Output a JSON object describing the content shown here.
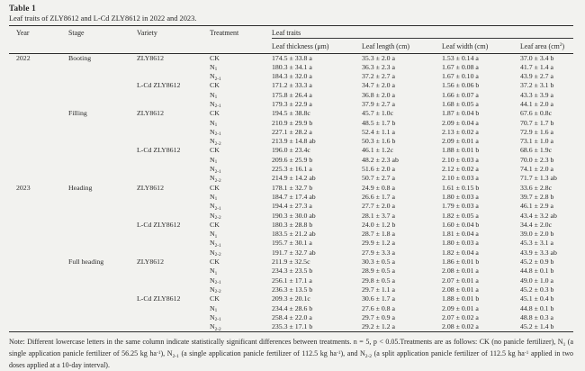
{
  "page": {
    "title": "Table 1",
    "caption": "Leaf traits of ZLY8612 and L-Cd ZLY8612 in 2022 and 2023."
  },
  "table": {
    "columns": [
      "Year",
      "Stage",
      "Variety",
      "Treatment"
    ],
    "group_header": "Leaf traits",
    "subcolumns": [
      "Leaf thickness (μm)",
      "Leaf length (cm)",
      "Leaf width (cm)",
      "Leaf area (cm^{2})"
    ],
    "rows": [
      {
        "year": "2022",
        "stage": "Booting",
        "variety": "ZLY8612",
        "treatment": "CK",
        "thickness": "174.5 ± 33.8 a",
        "length": "35.3 ± 2.0 a",
        "width": "1.53 ± 0.14 a",
        "area": "37.0 ± 3.4 b"
      },
      {
        "year": "",
        "stage": "",
        "variety": "",
        "treatment": "N_{1}",
        "thickness": "180.3 ± 34.1 a",
        "length": "36.3 ± 2.3 a",
        "width": "1.67 ± 0.08 a",
        "area": "41.7 ± 1.4 a"
      },
      {
        "year": "",
        "stage": "",
        "variety": "",
        "treatment": "N_{2-1}",
        "thickness": "184.3 ± 32.0 a",
        "length": "37.2 ± 2.7 a",
        "width": "1.67 ± 0.10 a",
        "area": "43.9 ± 2.7 a"
      },
      {
        "year": "",
        "stage": "",
        "variety": "L-Cd ZLY8612",
        "treatment": "CK",
        "thickness": "171.2 ± 33.3 a",
        "length": "34.7 ± 2.0 a",
        "width": "1.56 ± 0.06 b",
        "area": "37.2 ± 3.1 b"
      },
      {
        "year": "",
        "stage": "",
        "variety": "",
        "treatment": "N_{1}",
        "thickness": "175.8 ± 26.4 a",
        "length": "36.8 ± 2.0 a",
        "width": "1.66 ± 0.07 a",
        "area": "43.3 ± 3.9 a"
      },
      {
        "year": "",
        "stage": "",
        "variety": "",
        "treatment": "N_{2-1}",
        "thickness": "179.3 ± 22.9 a",
        "length": "37.9 ± 2.7 a",
        "width": "1.68 ± 0.05 a",
        "area": "44.1 ± 2.0 a"
      },
      {
        "year": "",
        "stage": "Filling",
        "variety": "ZLY8612",
        "treatment": "CK",
        "thickness": "194.5 ± 38.8c",
        "length": "45.7 ± 1.0c",
        "width": "1.87 ± 0.04 b",
        "area": "67.6 ± 0.8c"
      },
      {
        "year": "",
        "stage": "",
        "variety": "",
        "treatment": "N_{1}",
        "thickness": "210.9 ± 29.9 b",
        "length": "48.5 ± 1.7 b",
        "width": "2.09 ± 0.04 a",
        "area": "70.7 ± 1.7 b"
      },
      {
        "year": "",
        "stage": "",
        "variety": "",
        "treatment": "N_{2-1}",
        "thickness": "227.1 ± 28.2 a",
        "length": "52.4 ± 1.1 a",
        "width": "2.13 ± 0.02 a",
        "area": "72.9 ± 1.6 a"
      },
      {
        "year": "",
        "stage": "",
        "variety": "",
        "treatment": "N_{2-2}",
        "thickness": "213.9 ± 14.8 ab",
        "length": "50.3 ± 1.6 b",
        "width": "2.09 ± 0.01 a",
        "area": "73.1 ± 1.0 a"
      },
      {
        "year": "",
        "stage": "",
        "variety": "L-Cd ZLY8612",
        "treatment": "CK",
        "thickness": "196.0 ± 23.4c",
        "length": "46.1 ± 1.2c",
        "width": "1.88 ± 0.01 b",
        "area": "68.6 ± 1.9c"
      },
      {
        "year": "",
        "stage": "",
        "variety": "",
        "treatment": "N_{1}",
        "thickness": "209.6 ± 25.9 b",
        "length": "48.2 ± 2.3 ab",
        "width": "2.10 ± 0.03 a",
        "area": "70.0 ± 2.3 b"
      },
      {
        "year": "",
        "stage": "",
        "variety": "",
        "treatment": "N_{2-1}",
        "thickness": "225.3 ± 16.1 a",
        "length": "51.6 ± 2.0 a",
        "width": "2.12 ± 0.02 a",
        "area": "74.1 ± 2.0 a"
      },
      {
        "year": "",
        "stage": "",
        "variety": "",
        "treatment": "N_{2-2}",
        "thickness": "214.9 ± 14.2 ab",
        "length": "50.7 ± 2.7 a",
        "width": "2.10 ± 0.03 a",
        "area": "71.7 ± 1.3 ab"
      },
      {
        "year": "2023",
        "stage": "Heading",
        "variety": "ZLY8612",
        "treatment": "CK",
        "thickness": "178.1 ± 32.7 b",
        "length": "24.9 ± 0.8 a",
        "width": "1.61 ± 0.15 b",
        "area": "33.6 ± 2.8c"
      },
      {
        "year": "",
        "stage": "",
        "variety": "",
        "treatment": "N_{1}",
        "thickness": "184.7 ± 17.4 ab",
        "length": "26.6 ± 1.7 a",
        "width": "1.80 ± 0.03 a",
        "area": "39.7 ± 2.8 b"
      },
      {
        "year": "",
        "stage": "",
        "variety": "",
        "treatment": "N_{2-1}",
        "thickness": "194.4 ± 27.3 a",
        "length": "27.7 ± 2.0 a",
        "width": "1.79 ± 0.03 a",
        "area": "46.1 ± 2.9 a"
      },
      {
        "year": "",
        "stage": "",
        "variety": "",
        "treatment": "N_{2-2}",
        "thickness": "190.3 ± 30.0 ab",
        "length": "28.1 ± 3.7 a",
        "width": "1.82 ± 0.05 a",
        "area": "43.4 ± 3.2 ab"
      },
      {
        "year": "",
        "stage": "",
        "variety": "L-Cd ZLY8612",
        "treatment": "CK",
        "thickness": "180.3 ± 28.8 b",
        "length": "24.0 ± 1.2 b",
        "width": "1.60 ± 0.04 b",
        "area": "34.4 ± 2.0c"
      },
      {
        "year": "",
        "stage": "",
        "variety": "",
        "treatment": "N_{1}",
        "thickness": "183.5 ± 21.2 ab",
        "length": "28.7 ± 1.8 a",
        "width": "1.81 ± 0.04 a",
        "area": "39.0 ± 2.0 b"
      },
      {
        "year": "",
        "stage": "",
        "variety": "",
        "treatment": "N_{2-1}",
        "thickness": "195.7 ± 30.1 a",
        "length": "29.9 ± 1.2 a",
        "width": "1.80 ± 0.03 a",
        "area": "45.3 ± 3.1 a"
      },
      {
        "year": "",
        "stage": "",
        "variety": "",
        "treatment": "N_{2-2}",
        "thickness": "191.7 ± 32.7 ab",
        "length": "27.9 ± 3.3 a",
        "width": "1.82 ± 0.04 a",
        "area": "43.9 ± 3.3 ab"
      },
      {
        "year": "",
        "stage": "Full heading",
        "variety": "ZLY8612",
        "treatment": "CK",
        "thickness": "211.9 ± 32.5c",
        "length": "30.3 ± 0.5 a",
        "width": "1.86 ± 0.01 b",
        "area": "45.2 ± 0.9 b"
      },
      {
        "year": "",
        "stage": "",
        "variety": "",
        "treatment": "N_{1}",
        "thickness": "234.3 ± 23.5 b",
        "length": "28.9 ± 0.5 a",
        "width": "2.08 ± 0.01 a",
        "area": "44.8 ± 0.1 b"
      },
      {
        "year": "",
        "stage": "",
        "variety": "",
        "treatment": "N_{2-1}",
        "thickness": "256.1 ± 17.1 a",
        "length": "29.8 ± 0.5 a",
        "width": "2.07 ± 0.01 a",
        "area": "49.0 ± 1.0 a"
      },
      {
        "year": "",
        "stage": "",
        "variety": "",
        "treatment": "N_{2-2}",
        "thickness": "236.3 ± 13.5 b",
        "length": "29.7 ± 1.1 a",
        "width": "2.08 ± 0.01 a",
        "area": "45.2 ± 0.3 b"
      },
      {
        "year": "",
        "stage": "",
        "variety": "L-Cd ZLY8612",
        "treatment": "CK",
        "thickness": "209.3 ± 20.1c",
        "length": "30.6 ± 1.7 a",
        "width": "1.88 ± 0.01 b",
        "area": "45.1 ± 0.4 b"
      },
      {
        "year": "",
        "stage": "",
        "variety": "",
        "treatment": "N_{1}",
        "thickness": "234.4 ± 28.6 b",
        "length": "27.6 ± 0.8 a",
        "width": "2.09 ± 0.01 a",
        "area": "44.8 ± 0.1 b"
      },
      {
        "year": "",
        "stage": "",
        "variety": "",
        "treatment": "N_{2-1}",
        "thickness": "258.4 ± 22.0 a",
        "length": "29.7 ± 0.9 a",
        "width": "2.07 ± 0.02 a",
        "area": "48.8 ± 0.3 a"
      },
      {
        "year": "",
        "stage": "",
        "variety": "",
        "treatment": "N_{2-2}",
        "thickness": "235.3 ± 17.1 b",
        "length": "29.2 ± 1.2 a",
        "width": "2.08 ± 0.02 a",
        "area": "45.2 ± 1.4 b"
      }
    ]
  },
  "note": "Note: Different lowercase letters in the same column indicate statistically significant differences between treatments. n = 5, p < 0.05.Treatments are as follows: CK (no panicle fertilizer), N_{1} (a single application panicle fertilizer of 56.25 kg ha^{-1}), N_{2-1} (a single application panicle fertilizer of 112.5 kg ha^{-1}), and N_{2-2} (a split application panicle fertilizer of 112.5 kg ha^{-1} applied in two doses applied at a 10-day interval)."
}
